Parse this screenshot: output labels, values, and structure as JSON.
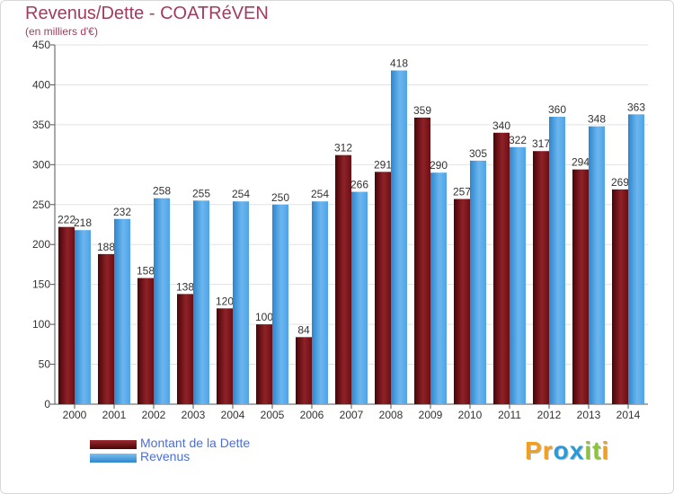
{
  "header": {
    "title": "Revenus/Dette - COATRéVEN",
    "subtitle": "(en milliers d'€)"
  },
  "chart_data": {
    "type": "bar",
    "categories": [
      "2000",
      "2001",
      "2002",
      "2003",
      "2004",
      "2005",
      "2006",
      "2007",
      "2008",
      "2009",
      "2010",
      "2011",
      "2012",
      "2013",
      "2014"
    ],
    "series": [
      {
        "name": "Montant de la Dette",
        "color": "#6b0f14",
        "values": [
          222,
          188,
          158,
          138,
          120,
          100,
          84,
          312,
          291,
          359,
          257,
          340,
          317,
          294,
          269
        ]
      },
      {
        "name": "Revenus",
        "color": "#4fa3e6",
        "values": [
          218,
          232,
          258,
          255,
          254,
          250,
          254,
          266,
          418,
          290,
          305,
          322,
          360,
          348,
          363
        ]
      }
    ],
    "ylim": [
      0,
      450
    ],
    "yticks": [
      0,
      50,
      100,
      150,
      200,
      250,
      300,
      350,
      400,
      450
    ],
    "grid": true,
    "legend_position": "bottom-left"
  },
  "legend": {
    "items": [
      {
        "label": "Montant de la Dette",
        "color": "#6b0f14"
      },
      {
        "label": "Revenus",
        "color": "#4fa3e6"
      }
    ]
  },
  "logo": {
    "letters": [
      "P",
      "r",
      "o",
      "x",
      "i",
      "t",
      "i"
    ],
    "colors": [
      "#f0a020",
      "#f0a020",
      "#2a9ad8",
      "#2a9ad8",
      "#8cc43c",
      "#8cc43c",
      "#f0a020"
    ]
  }
}
